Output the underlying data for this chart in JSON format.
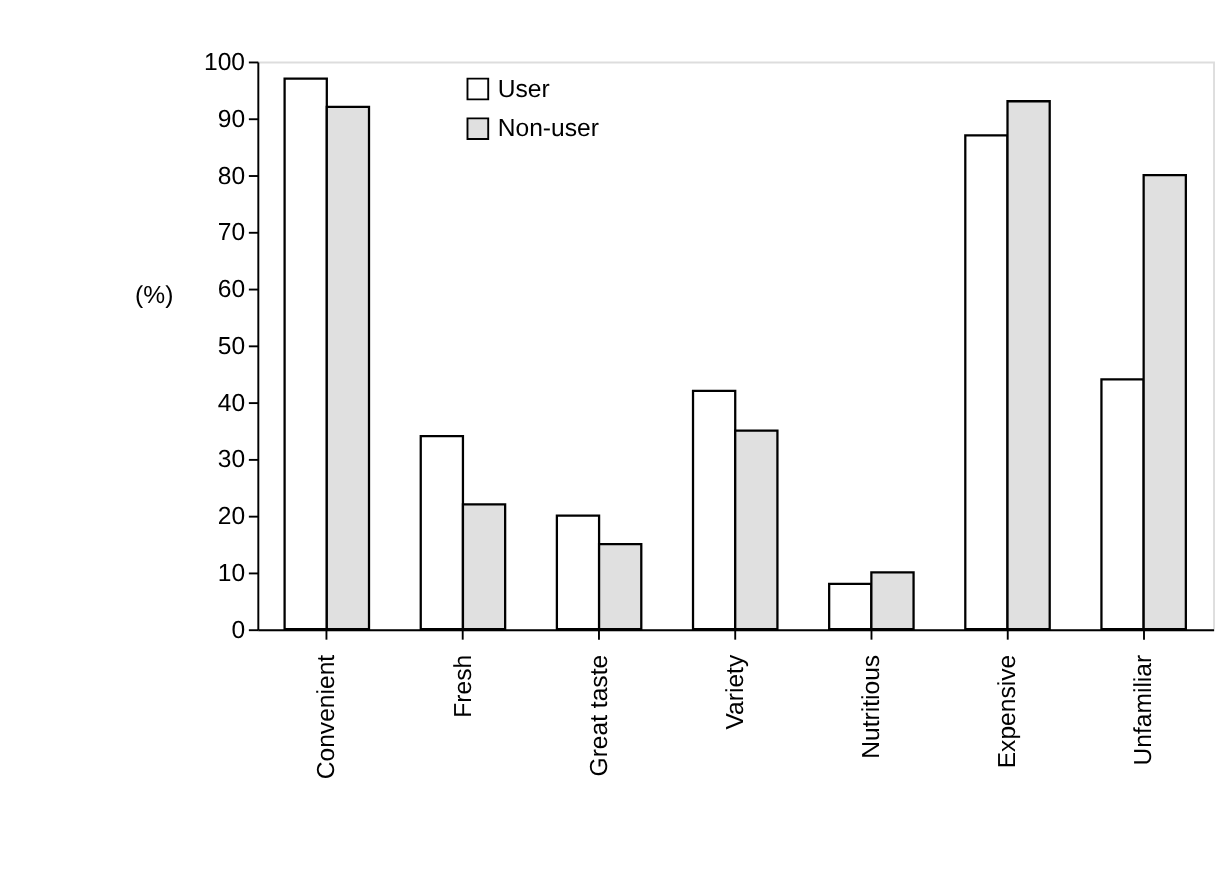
{
  "chart_data": {
    "type": "bar",
    "ylabel": "(%)",
    "categories": [
      "Convenient",
      "Fresh",
      "Great taste",
      "Variety",
      "Nutritious",
      "Expensive",
      "Unfamiliar"
    ],
    "series": [
      {
        "name": "User",
        "color": "#ffffff",
        "values": [
          97,
          34,
          20,
          42,
          8,
          87,
          44
        ]
      },
      {
        "name": "Non-user",
        "color": "#e0e0e0",
        "values": [
          92,
          22,
          15,
          35,
          10,
          93,
          80
        ]
      }
    ],
    "ylim": [
      0,
      100
    ],
    "yticks": [
      0,
      10,
      20,
      30,
      40,
      50,
      60,
      70,
      80,
      90,
      100
    ],
    "grid": false,
    "legend": "top left"
  }
}
